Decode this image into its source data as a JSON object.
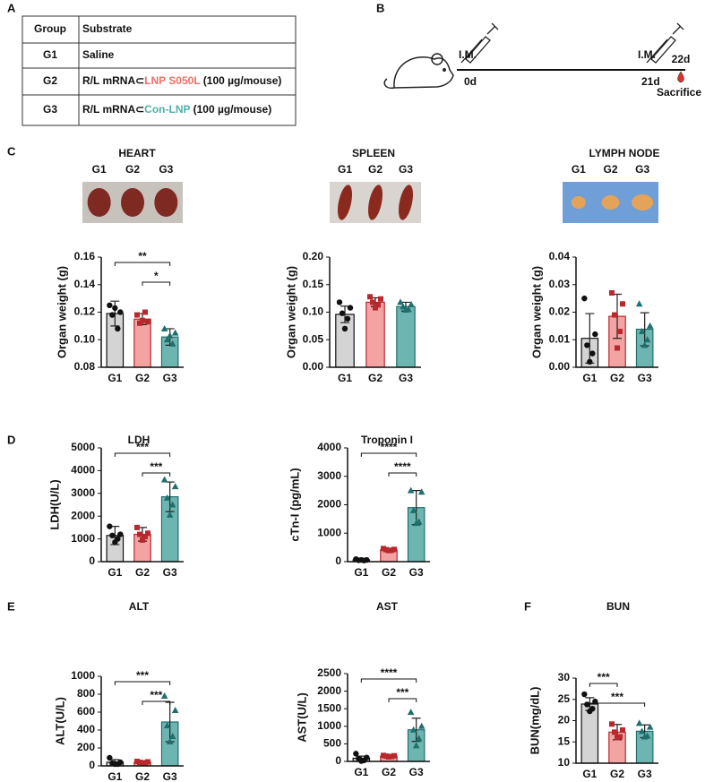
{
  "panel_labels": [
    "A",
    "B",
    "C",
    "D",
    "E",
    "F"
  ],
  "table": {
    "header": [
      "Group",
      "Substrate"
    ],
    "rows": [
      [
        "G1",
        [
          {
            "text": "Saline"
          }
        ]
      ],
      [
        "G2",
        [
          {
            "text": "R/L mRNA⊂"
          },
          {
            "text": "LNP S050L",
            "color": "#ee6f69"
          },
          {
            "text": " (100 µg/mouse)"
          }
        ]
      ],
      [
        "G3",
        [
          {
            "text": "R/L mRNA⊂"
          },
          {
            "text": "Con-LNP",
            "color": "#4fb0aa"
          },
          {
            "text": " (100 µg/mouse)"
          }
        ]
      ]
    ]
  },
  "timeline": {
    "events": [
      {
        "label": "I.M.",
        "day": "0d"
      },
      {
        "label": "I.M.",
        "day": "21d"
      }
    ],
    "end": {
      "day": "22d",
      "label": "Sacrifice",
      "color": "#e0302a"
    }
  },
  "chart_data": [
    {
      "type": "bar",
      "title": "HEART",
      "ylabel": "Organ weight (g)",
      "categories": [
        "G1",
        "G2",
        "G3"
      ],
      "values": [
        0.119,
        0.115,
        0.102
      ],
      "errors": [
        0.009,
        0.004,
        0.006
      ],
      "points": [
        [
          0.125,
          0.12,
          0.118,
          0.108,
          0.123
        ],
        [
          0.118,
          0.113,
          0.112,
          0.12,
          0.114
        ],
        [
          0.108,
          0.105,
          0.1,
          0.097,
          0.103
        ]
      ],
      "colors": [
        "#d4d4d4",
        "#f4a3a3",
        "#6db5b1"
      ],
      "point_colors": [
        "#111111",
        "#b8282c",
        "#1f6f6c"
      ],
      "markers": [
        "circle",
        "square",
        "triangle"
      ],
      "ylim": [
        0.08,
        0.16
      ],
      "yticks": [
        {
          "value": 0.08,
          "label": "0.08"
        },
        {
          "value": 0.1,
          "label": "0.10"
        },
        0.12,
        0.14,
        0.16
      ],
      "annotations": [
        {
          "text": "**",
          "from": "G1",
          "to": "G3"
        },
        {
          "text": "*",
          "from": "G2",
          "to": "G3"
        }
      ]
    },
    {
      "type": "bar",
      "title": "SPLEEN",
      "ylabel": "Organ weight (g)",
      "categories": [
        "G1",
        "G2",
        "G3"
      ],
      "values": [
        0.096,
        0.118,
        0.11
      ],
      "errors": [
        0.015,
        0.008,
        0.008
      ],
      "points": [
        [
          0.118,
          0.108,
          0.098,
          0.088,
          0.07
        ],
        [
          0.128,
          0.124,
          0.118,
          0.113,
          0.108
        ],
        [
          0.118,
          0.114,
          0.11,
          0.105,
          0.104
        ]
      ],
      "colors": [
        "#d4d4d4",
        "#f4a3a3",
        "#6db5b1"
      ],
      "point_colors": [
        "#111111",
        "#b8282c",
        "#1f6f6c"
      ],
      "markers": [
        "circle",
        "square",
        "triangle"
      ],
      "ylim": [
        0,
        0.2
      ],
      "yticks": [
        {
          "value": 0,
          "label": "0.00"
        },
        0.05,
        {
          "value": 0.1,
          "label": "0.10"
        },
        0.15,
        {
          "value": 0.2,
          "label": "0.20"
        }
      ],
      "annotations": []
    },
    {
      "type": "bar",
      "title": "LYMPH NODE",
      "ylabel": "Organ weight (g)",
      "categories": [
        "G1",
        "G2",
        "G3"
      ],
      "values": [
        0.0105,
        0.0185,
        0.0138
      ],
      "errors": [
        0.009,
        0.008,
        0.006
      ],
      "points": [
        [
          0.025,
          0.012,
          0.008,
          0.005,
          0.002
        ],
        [
          0.027,
          0.023,
          0.019,
          0.013,
          0.007
        ],
        [
          0.023,
          0.015,
          0.013,
          0.01,
          0.008
        ]
      ],
      "colors": [
        "#d4d4d4",
        "#f4a3a3",
        "#6db5b1"
      ],
      "point_colors": [
        "#111111",
        "#b8282c",
        "#1f6f6c"
      ],
      "markers": [
        "circle",
        "square",
        "triangle"
      ],
      "ylim": [
        0,
        0.04
      ],
      "yticks": [
        {
          "value": 0,
          "label": "0.00"
        },
        0.01,
        0.02,
        0.03,
        0.04
      ],
      "annotations": []
    },
    {
      "type": "bar",
      "title": "LDH",
      "ylabel": "LDH(U/L)",
      "categories": [
        "G1",
        "G2",
        "G3"
      ],
      "values": [
        1150,
        1200,
        2850
      ],
      "errors": [
        400,
        300,
        650
      ],
      "points": [
        [
          1550,
          1200,
          1150,
          1000,
          850
        ],
        [
          1500,
          1250,
          1200,
          1100,
          950
        ],
        [
          3600,
          3300,
          2800,
          2500,
          2050
        ]
      ],
      "colors": [
        "#d4d4d4",
        "#f4a3a3",
        "#6db5b1"
      ],
      "point_colors": [
        "#111111",
        "#b8282c",
        "#1f6f6c"
      ],
      "markers": [
        "circle",
        "square",
        "triangle"
      ],
      "ylim": [
        0,
        5000
      ],
      "yticks": [
        0,
        1000,
        2000,
        3000,
        4000,
        5000
      ],
      "annotations": [
        {
          "text": "***",
          "from": "G1",
          "to": "G3"
        },
        {
          "text": "***",
          "from": "G2",
          "to": "G3"
        }
      ]
    },
    {
      "type": "bar",
      "title": "Troponin I",
      "ylabel": "cTn-I (pg/mL)",
      "categories": [
        "G1",
        "G2",
        "G3"
      ],
      "values": [
        60,
        420,
        1900
      ],
      "errors": [
        30,
        50,
        600
      ],
      "points": [
        [
          90,
          60,
          50,
          40,
          60
        ],
        [
          460,
          430,
          420,
          400,
          390
        ],
        [
          2500,
          2450,
          1800,
          1400,
          1350
        ]
      ],
      "colors": [
        "#d4d4d4",
        "#f4a3a3",
        "#6db5b1"
      ],
      "point_colors": [
        "#111111",
        "#b8282c",
        "#1f6f6c"
      ],
      "markers": [
        "circle",
        "square",
        "triangle"
      ],
      "ylim": [
        0,
        4000
      ],
      "yticks": [
        0,
        1000,
        2000,
        3000,
        4000
      ],
      "annotations": [
        {
          "text": "****",
          "from": "G1",
          "to": "G3"
        },
        {
          "text": "****",
          "from": "G2",
          "to": "G3"
        }
      ]
    },
    {
      "type": "bar",
      "title": "ALT",
      "ylabel": "ALT(U/L)",
      "categories": [
        "G1",
        "G2",
        "G3"
      ],
      "values": [
        40,
        40,
        490
      ],
      "errors": [
        30,
        10,
        220
      ],
      "points": [
        [
          90,
          40,
          30,
          20,
          20
        ],
        [
          50,
          45,
          40,
          35,
          30
        ],
        [
          780,
          620,
          450,
          330,
          270
        ]
      ],
      "colors": [
        "#d4d4d4",
        "#f4a3a3",
        "#6db5b1"
      ],
      "point_colors": [
        "#111111",
        "#b8282c",
        "#1f6f6c"
      ],
      "markers": [
        "circle",
        "square",
        "triangle"
      ],
      "ylim": [
        0,
        1000
      ],
      "yticks": [
        0,
        200,
        400,
        600,
        800,
        1000
      ],
      "annotations": [
        {
          "text": "***",
          "from": "G1",
          "to": "G3"
        },
        {
          "text": "***",
          "from": "G2",
          "to": "G3"
        }
      ]
    },
    {
      "type": "bar",
      "title": "AST",
      "ylabel": "AST(U/L)",
      "categories": [
        "G1",
        "G2",
        "G3"
      ],
      "values": [
        90,
        150,
        900
      ],
      "errors": [
        60,
        20,
        330
      ],
      "points": [
        [
          220,
          110,
          80,
          30,
          10
        ],
        [
          170,
          160,
          150,
          140,
          130
        ],
        [
          1400,
          1000,
          900,
          650,
          450
        ]
      ],
      "colors": [
        "#d4d4d4",
        "#f4a3a3",
        "#6db5b1"
      ],
      "point_colors": [
        "#111111",
        "#b8282c",
        "#1f6f6c"
      ],
      "markers": [
        "circle",
        "square",
        "triangle"
      ],
      "ylim": [
        0,
        2500
      ],
      "yticks": [
        0,
        500,
        1000,
        1500,
        2000,
        2500
      ],
      "annotations": [
        {
          "text": "****",
          "from": "G1",
          "to": "G3"
        },
        {
          "text": "***",
          "from": "G2",
          "to": "G3"
        }
      ]
    },
    {
      "type": "bar",
      "title": "BUN",
      "ylabel": "BUN(mg/dL)",
      "categories": [
        "G1",
        "G2",
        "G3"
      ],
      "values": [
        23.9,
        17.3,
        17.5
      ],
      "errors": [
        1.5,
        1.8,
        1.5
      ],
      "points": [
        [
          26.2,
          24.5,
          23.8,
          22.8,
          22.2
        ],
        [
          19.2,
          17.8,
          17.3,
          16.2,
          16
        ],
        [
          19.4,
          18.5,
          17.5,
          16.4,
          16.2
        ]
      ],
      "colors": [
        "#d4d4d4",
        "#f4a3a3",
        "#6db5b1"
      ],
      "point_colors": [
        "#111111",
        "#b8282c",
        "#1f6f6c"
      ],
      "markers": [
        "circle",
        "square",
        "triangle"
      ],
      "ylim": [
        10,
        30
      ],
      "yticks": [
        10,
        15,
        20,
        25,
        30
      ],
      "annotations": [
        {
          "text": "***",
          "from": "G1",
          "to": "G2"
        },
        {
          "text": "***",
          "from": "G1",
          "to": "G3"
        }
      ]
    }
  ]
}
